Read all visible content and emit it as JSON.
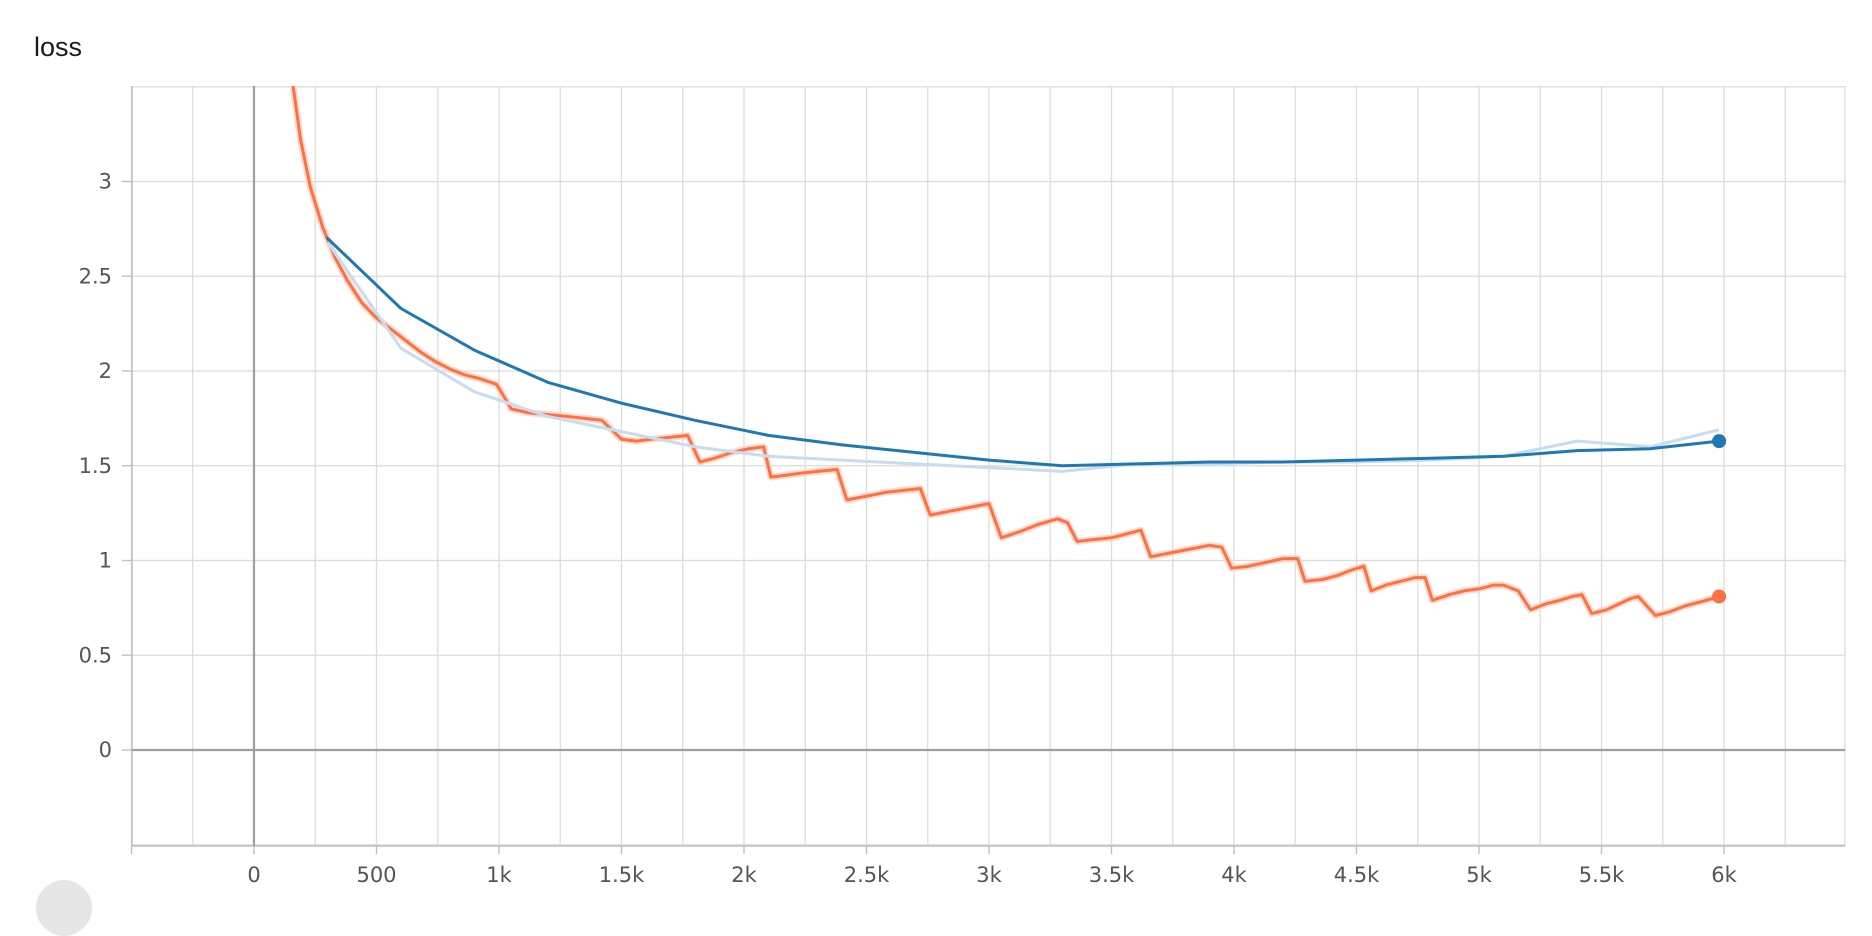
{
  "chart_data": {
    "type": "line",
    "title": "loss",
    "xlabel": "",
    "ylabel": "",
    "xlim": [
      -500,
      6500
    ],
    "ylim": [
      -0.5,
      3.5
    ],
    "x_ticks": [
      0,
      500,
      1000,
      1500,
      2000,
      2500,
      3000,
      3500,
      4000,
      4500,
      5000,
      5500,
      6000
    ],
    "x_tick_labels": [
      "0",
      "500",
      "1k",
      "1.5k",
      "2k",
      "2.5k",
      "3k",
      "3.5k",
      "4k",
      "4.5k",
      "5k",
      "5.5k",
      "6k"
    ],
    "y_ticks": [
      0,
      0.5,
      1,
      1.5,
      2,
      2.5,
      3
    ],
    "y_tick_labels": [
      "0",
      "0.5",
      "1",
      "1.5",
      "2",
      "2.5",
      "3"
    ],
    "grid": true,
    "legend": "none",
    "series": [
      {
        "color": "#ff7043",
        "raw_color": "#fbd3c4",
        "smoothed": [
          [
            160,
            3.5
          ],
          [
            190,
            3.22
          ],
          [
            230,
            2.97
          ],
          [
            280,
            2.76
          ],
          [
            330,
            2.6
          ],
          [
            380,
            2.48
          ],
          [
            440,
            2.36
          ],
          [
            500,
            2.28
          ],
          [
            560,
            2.22
          ],
          [
            620,
            2.16
          ],
          [
            680,
            2.1
          ],
          [
            740,
            2.05
          ],
          [
            800,
            2.01
          ],
          [
            860,
            1.98
          ],
          [
            920,
            1.96
          ],
          [
            990,
            1.93
          ],
          [
            1050,
            1.8
          ],
          [
            1120,
            1.78
          ],
          [
            1200,
            1.77
          ],
          [
            1280,
            1.76
          ],
          [
            1350,
            1.75
          ],
          [
            1420,
            1.74
          ],
          [
            1500,
            1.64
          ],
          [
            1560,
            1.63
          ],
          [
            1620,
            1.64
          ],
          [
            1700,
            1.65
          ],
          [
            1770,
            1.66
          ],
          [
            1820,
            1.52
          ],
          [
            1880,
            1.54
          ],
          [
            1950,
            1.57
          ],
          [
            2020,
            1.59
          ],
          [
            2080,
            1.6
          ],
          [
            2110,
            1.44
          ],
          [
            2170,
            1.45
          ],
          [
            2230,
            1.46
          ],
          [
            2300,
            1.47
          ],
          [
            2380,
            1.48
          ],
          [
            2420,
            1.32
          ],
          [
            2500,
            1.34
          ],
          [
            2580,
            1.36
          ],
          [
            2650,
            1.37
          ],
          [
            2720,
            1.38
          ],
          [
            2760,
            1.24
          ],
          [
            2840,
            1.26
          ],
          [
            2920,
            1.28
          ],
          [
            3000,
            1.3
          ],
          [
            3050,
            1.12
          ],
          [
            3120,
            1.15
          ],
          [
            3200,
            1.19
          ],
          [
            3280,
            1.22
          ],
          [
            3320,
            1.2
          ],
          [
            3360,
            1.1
          ],
          [
            3420,
            1.11
          ],
          [
            3500,
            1.12
          ],
          [
            3560,
            1.14
          ],
          [
            3620,
            1.16
          ],
          [
            3660,
            1.02
          ],
          [
            3740,
            1.04
          ],
          [
            3820,
            1.06
          ],
          [
            3900,
            1.08
          ],
          [
            3950,
            1.07
          ],
          [
            3990,
            0.96
          ],
          [
            4060,
            0.97
          ],
          [
            4130,
            0.99
          ],
          [
            4200,
            1.01
          ],
          [
            4260,
            1.01
          ],
          [
            4290,
            0.89
          ],
          [
            4360,
            0.9
          ],
          [
            4420,
            0.92
          ],
          [
            4480,
            0.95
          ],
          [
            4530,
            0.97
          ],
          [
            4560,
            0.84
          ],
          [
            4620,
            0.87
          ],
          [
            4680,
            0.89
          ],
          [
            4740,
            0.91
          ],
          [
            4780,
            0.91
          ],
          [
            4810,
            0.79
          ],
          [
            4880,
            0.82
          ],
          [
            4940,
            0.84
          ],
          [
            5000,
            0.85
          ],
          [
            5060,
            0.87
          ],
          [
            5100,
            0.87
          ],
          [
            5160,
            0.84
          ],
          [
            5210,
            0.74
          ],
          [
            5270,
            0.77
          ],
          [
            5330,
            0.79
          ],
          [
            5380,
            0.81
          ],
          [
            5420,
            0.82
          ],
          [
            5460,
            0.72
          ],
          [
            5520,
            0.74
          ],
          [
            5570,
            0.77
          ],
          [
            5620,
            0.8
          ],
          [
            5650,
            0.81
          ],
          [
            5720,
            0.71
          ],
          [
            5780,
            0.73
          ],
          [
            5840,
            0.76
          ],
          [
            5900,
            0.78
          ],
          [
            5980,
            0.81
          ]
        ]
      },
      {
        "color": "#1f78b4",
        "raw_color": "#c7dcee",
        "smoothed": [
          [
            300,
            2.7
          ],
          [
            600,
            2.33
          ],
          [
            900,
            2.11
          ],
          [
            1200,
            1.94
          ],
          [
            1500,
            1.83
          ],
          [
            1800,
            1.74
          ],
          [
            2100,
            1.66
          ],
          [
            2400,
            1.61
          ],
          [
            2700,
            1.57
          ],
          [
            3000,
            1.53
          ],
          [
            3300,
            1.5
          ],
          [
            3600,
            1.51
          ],
          [
            3900,
            1.52
          ],
          [
            4200,
            1.52
          ],
          [
            4500,
            1.53
          ],
          [
            4800,
            1.54
          ],
          [
            5100,
            1.55
          ],
          [
            5400,
            1.58
          ],
          [
            5700,
            1.59
          ],
          [
            5980,
            1.63
          ]
        ],
        "raw": [
          [
            300,
            2.68
          ],
          [
            600,
            2.12
          ],
          [
            900,
            1.89
          ],
          [
            1200,
            1.76
          ],
          [
            1500,
            1.68
          ],
          [
            1800,
            1.6
          ],
          [
            2100,
            1.55
          ],
          [
            2400,
            1.53
          ],
          [
            2700,
            1.51
          ],
          [
            3000,
            1.49
          ],
          [
            3300,
            1.47
          ],
          [
            3600,
            1.51
          ],
          [
            3900,
            1.51
          ],
          [
            4200,
            1.52
          ],
          [
            4500,
            1.52
          ],
          [
            4800,
            1.53
          ],
          [
            5100,
            1.55
          ],
          [
            5400,
            1.63
          ],
          [
            5700,
            1.6
          ],
          [
            5980,
            1.69
          ]
        ]
      }
    ]
  }
}
